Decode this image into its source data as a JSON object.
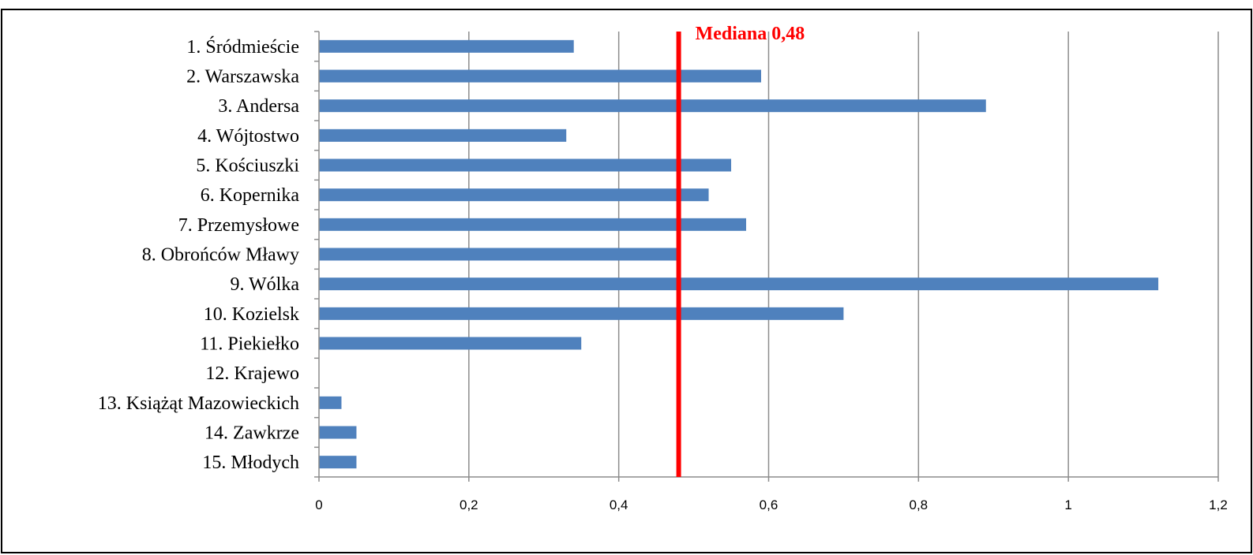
{
  "chart_data": {
    "type": "bar",
    "orientation": "horizontal",
    "title": "",
    "xlabel": "",
    "ylabel": "",
    "categories": [
      "1. Śródmieście",
      "2. Warszawska",
      "3. Andersa",
      "4. Wójtostwo",
      "5. Kościuszki",
      "6. Kopernika",
      "7. Przemysłowe",
      "8. Obrońców Mławy",
      "9. Wólka",
      "10. Kozielsk",
      "11. Piekiełko",
      "12. Krajewo",
      "13. Książąt Mazowieckich",
      "14. Zawkrze",
      "15. Młodych"
    ],
    "values": [
      0.34,
      0.59,
      0.89,
      0.33,
      0.55,
      0.52,
      0.57,
      0.48,
      1.12,
      0.7,
      0.35,
      0,
      0.03,
      0.05,
      0.05
    ],
    "xlim": [
      0,
      1.2
    ],
    "x_ticks": [
      "0",
      "0,2",
      "0,4",
      "0,6",
      "0,8",
      "1",
      "1,2"
    ],
    "x_tick_values": [
      0,
      0.2,
      0.4,
      0.6,
      0.8,
      1.0,
      1.2
    ],
    "grid": "vertical",
    "legend": "none",
    "bar_color": "#4f81bd",
    "reference_line": {
      "value": 0.48,
      "label": "Mediana 0,48",
      "color": "#ff0000"
    }
  }
}
